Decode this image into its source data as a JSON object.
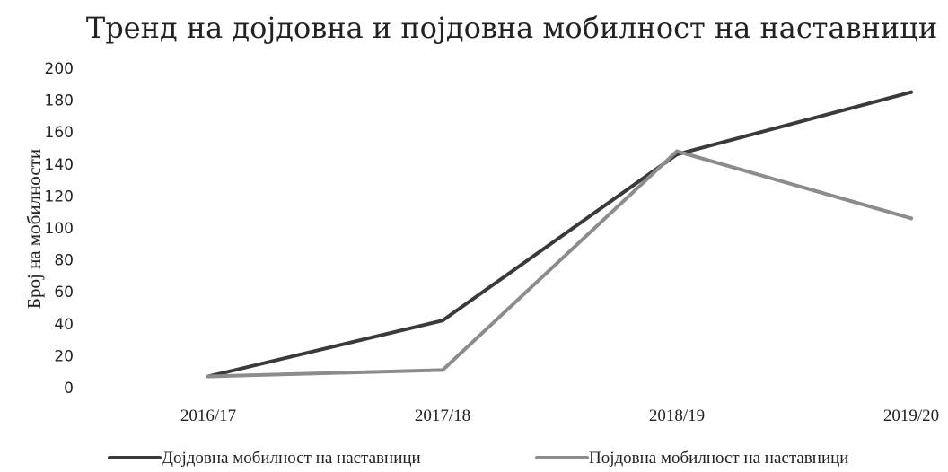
{
  "chart_data": {
    "type": "line",
    "title": "Тренд на дојдовна и појдовна мобилност на наставници",
    "xlabel": "",
    "ylabel": "Број на мобилности",
    "categories": [
      "2016/17",
      "2017/18",
      "2018/19",
      "2019/20"
    ],
    "ylim": [
      0,
      200
    ],
    "yticks": [
      0,
      20,
      40,
      60,
      80,
      100,
      120,
      140,
      160,
      180,
      200
    ],
    "grid": false,
    "legend_position": "bottom",
    "series": [
      {
        "name": "Дојдовна мобилност на наставници",
        "values": [
          7,
          42,
          146,
          185
        ],
        "color": "#3a3a3a"
      },
      {
        "name": "Појдовна мобилност на наставници",
        "values": [
          7,
          11,
          148,
          106
        ],
        "color": "#8c8c8c"
      }
    ]
  }
}
